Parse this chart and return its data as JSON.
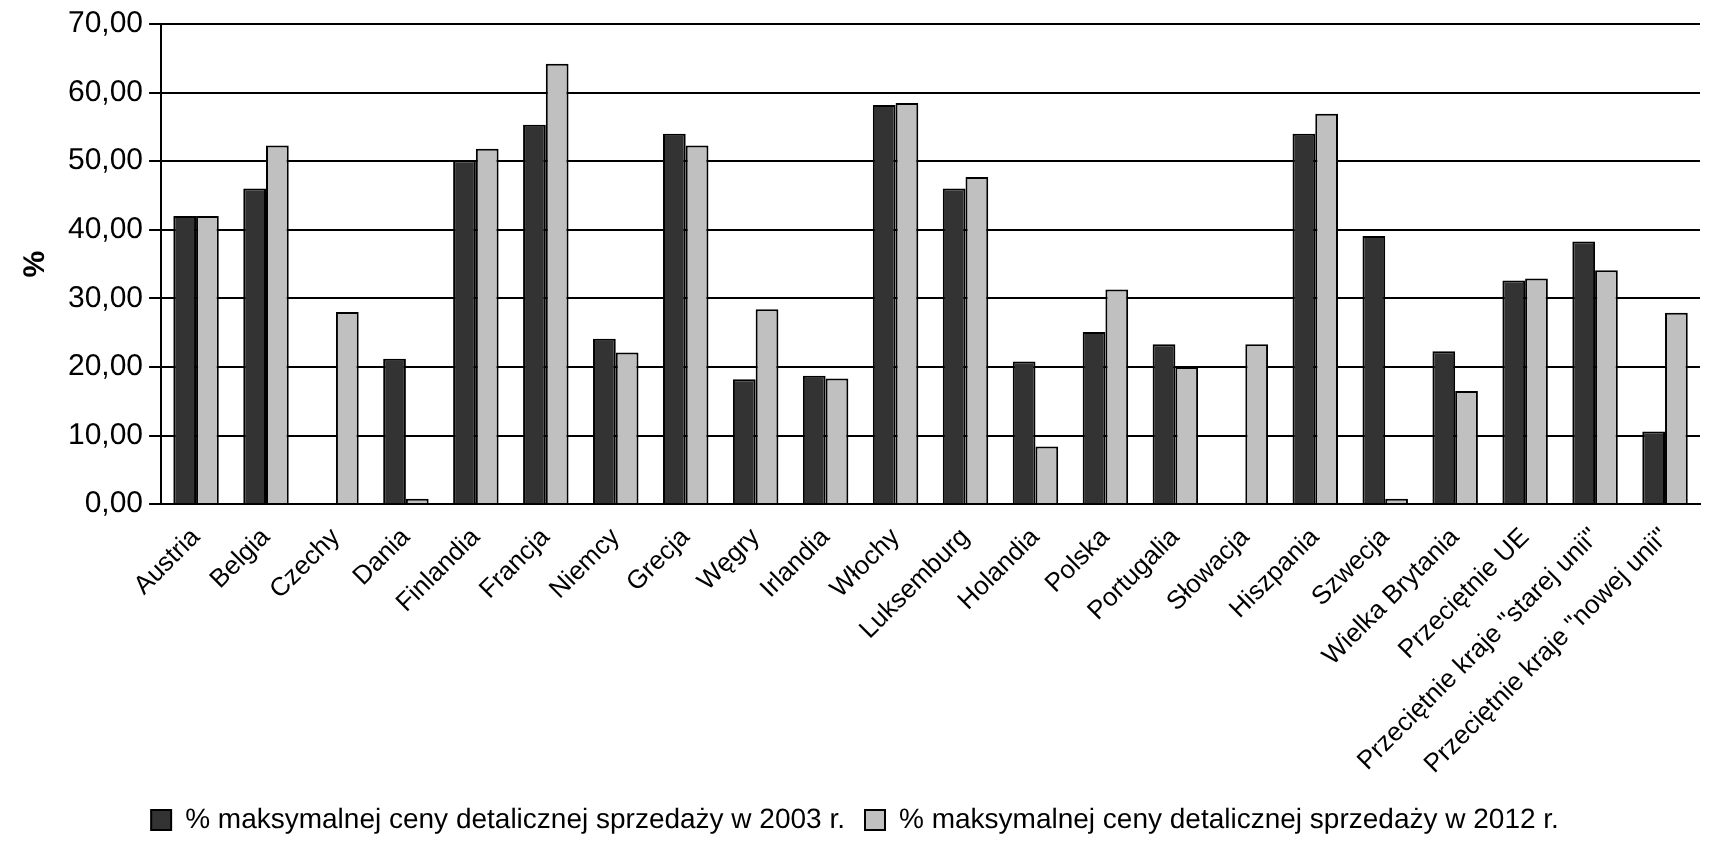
{
  "chart_data": {
    "type": "bar",
    "ylabel": "%",
    "categories": [
      "Austria",
      "Belgia",
      "Czechy",
      "Dania",
      "Finlandia",
      "Francja",
      "Niemcy",
      "Grecja",
      "Węgry",
      "Irlandia",
      "Włochy",
      "Luksemburg",
      "Holandia",
      "Polska",
      "Portugalia",
      "Słowacja",
      "Hiszpania",
      "Szwecja",
      "Wielka Brytania",
      "Przeciętnie UE",
      "Przeciętnie kraje \"starej unii\"",
      "Przeciętnie kraje \"nowej unii\""
    ],
    "series": [
      {
        "name": "% maksymalnej ceny detalicznej sprzedaży w 2003 r.",
        "color": "#333333",
        "values": [
          42,
          46,
          null,
          21.2,
          50.1,
          55.3,
          24.1,
          54,
          18.2,
          18.7,
          58.2,
          46,
          20.8,
          25.1,
          23.3,
          null,
          54,
          39.1,
          22.3,
          32.6,
          38.3,
          10.6
        ]
      },
      {
        "name": "% maksymalnej ceny detalicznej sprzedaży w 2012 r.",
        "color": "#c0c0c0",
        "values": [
          42,
          52.3,
          28,
          0.8,
          51.8,
          64.2,
          22.1,
          52.3,
          28.4,
          18.3,
          58.5,
          47.7,
          8.4,
          31.3,
          20,
          23.3,
          56.9,
          0.8,
          16.5,
          32.9,
          34.1,
          27.9
        ]
      }
    ],
    "ylim": [
      0,
      70
    ],
    "yticks": [
      {
        "value": 0,
        "label": "0,00"
      },
      {
        "value": 10,
        "label": "10,00"
      },
      {
        "value": 20,
        "label": "20,00"
      },
      {
        "value": 30,
        "label": "30,00"
      },
      {
        "value": 40,
        "label": "40,00"
      },
      {
        "value": 50,
        "label": "50,00"
      },
      {
        "value": 60,
        "label": "60,00"
      },
      {
        "value": 70,
        "label": "70,00"
      }
    ],
    "grid": "y",
    "legend": "bottom"
  }
}
